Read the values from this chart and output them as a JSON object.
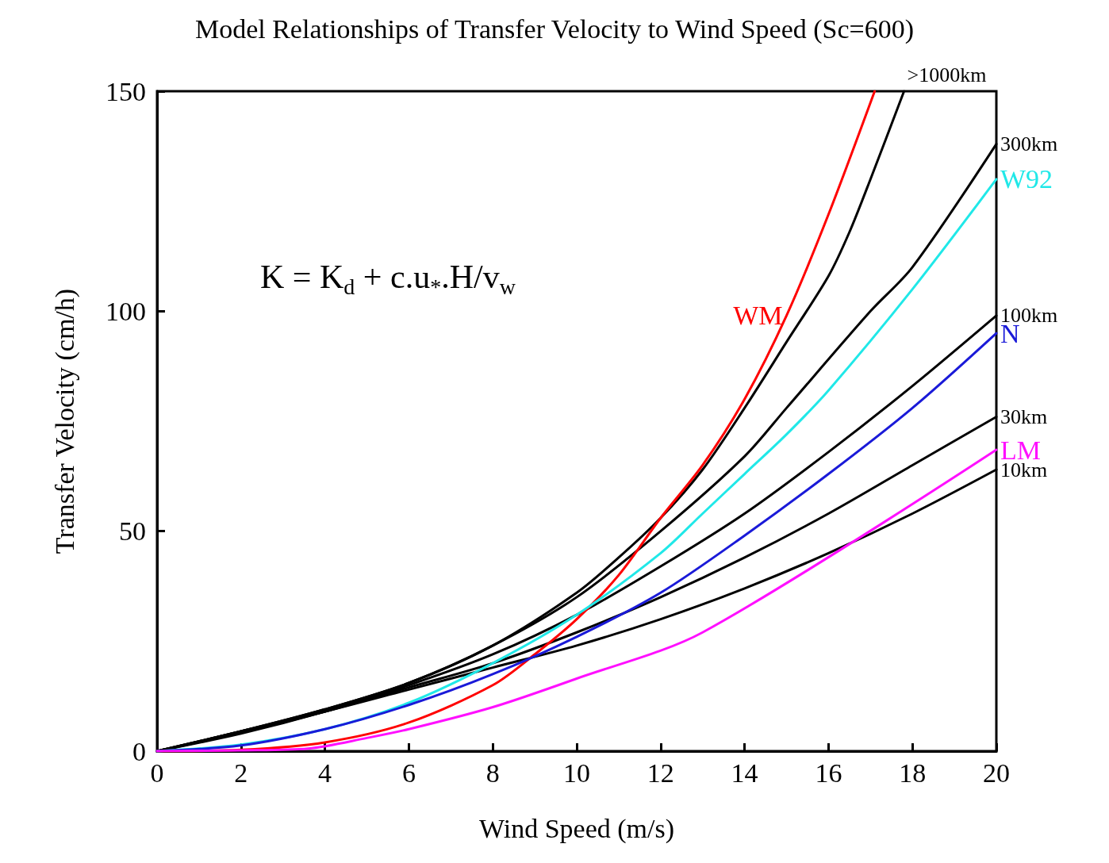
{
  "chart_data": {
    "type": "line",
    "title": "Model Relationships of Transfer Velocity to Wind Speed (Sc=600)",
    "xlabel": "Wind Speed (m/s)",
    "ylabel": "Transfer Velocity (cm/h)",
    "annotations": [
      "K = K$_{d}$ + c.u$_{*}$.H/v$_{w}$"
    ],
    "xlim": [
      0,
      20
    ],
    "ylim": [
      0,
      150
    ],
    "xticks": [
      0,
      2,
      4,
      6,
      8,
      10,
      12,
      14,
      16,
      18,
      20
    ],
    "yticks": [
      0,
      50,
      100,
      150
    ],
    "grid": false,
    "marker": "none",
    "line_style": "solid",
    "series": [
      {
        "name": ">1000km",
        "color": "#000000",
        "x": [
          0,
          2,
          4,
          6,
          8,
          10,
          11,
          12,
          13,
          14,
          15,
          16,
          16.5,
          17,
          17.8
        ],
        "values": [
          0,
          4.5,
          9.5,
          15.5,
          24,
          36,
          44,
          53,
          64,
          78,
          93,
          108,
          118,
          130,
          150
        ]
      },
      {
        "name": "300km",
        "color": "#000000",
        "x": [
          0,
          2,
          4,
          6,
          8,
          10,
          12,
          14,
          15,
          17,
          18,
          20
        ],
        "values": [
          0,
          4.5,
          9.5,
          15.5,
          24,
          35,
          50,
          67,
          78,
          100,
          110,
          138
        ]
      },
      {
        "name": "100km",
        "color": "#000000",
        "x": [
          0,
          2,
          4,
          6,
          8,
          10,
          12,
          14,
          16,
          18,
          20
        ],
        "values": [
          0,
          4,
          9,
          15,
          22,
          31,
          42,
          54,
          68,
          83,
          99
        ]
      },
      {
        "name": "30km",
        "color": "#000000",
        "x": [
          0,
          2,
          4,
          6,
          8,
          10,
          12,
          14,
          16,
          18,
          20
        ],
        "values": [
          0,
          4.2,
          9,
          14.5,
          20,
          27,
          35,
          44,
          54,
          65,
          76
        ]
      },
      {
        "name": "10km",
        "color": "#000000",
        "x": [
          0,
          2,
          4,
          6,
          8,
          10,
          12,
          14,
          16,
          18,
          20
        ],
        "values": [
          0,
          4.5,
          9,
          14,
          19,
          24,
          30,
          37,
          45,
          54,
          64
        ]
      },
      {
        "name": "WM",
        "color": "#ff0000",
        "x": [
          0,
          2,
          4,
          6,
          8,
          9,
          10,
          11,
          12,
          13,
          14,
          15,
          16,
          17.1
        ],
        "values": [
          0,
          0.3,
          2,
          6.5,
          15,
          22,
          30,
          40,
          53,
          65,
          80,
          99,
          122,
          150
        ]
      },
      {
        "name": "W92",
        "color": "#20e8e8",
        "x": [
          0,
          2,
          4,
          6,
          8,
          10,
          12,
          13,
          14,
          15,
          16,
          18,
          20
        ],
        "values": [
          0,
          1.5,
          5,
          11,
          20,
          31,
          45,
          54,
          63,
          72,
          82,
          105,
          130
        ]
      },
      {
        "name": "N",
        "color": "#1a1ad8",
        "x": [
          0,
          2,
          4,
          6,
          8,
          10,
          12,
          14,
          16,
          18,
          20
        ],
        "values": [
          0,
          1.3,
          5,
          10.5,
          17.5,
          26,
          36,
          49,
          63,
          78,
          95
        ]
      },
      {
        "name": "LM",
        "color": "#ff10ff",
        "x": [
          0,
          2,
          3.6,
          5,
          6,
          8,
          10,
          13,
          20
        ],
        "values": [
          0,
          0.2,
          0.6,
          3,
          5,
          10,
          16.5,
          27,
          68.5
        ]
      }
    ]
  }
}
